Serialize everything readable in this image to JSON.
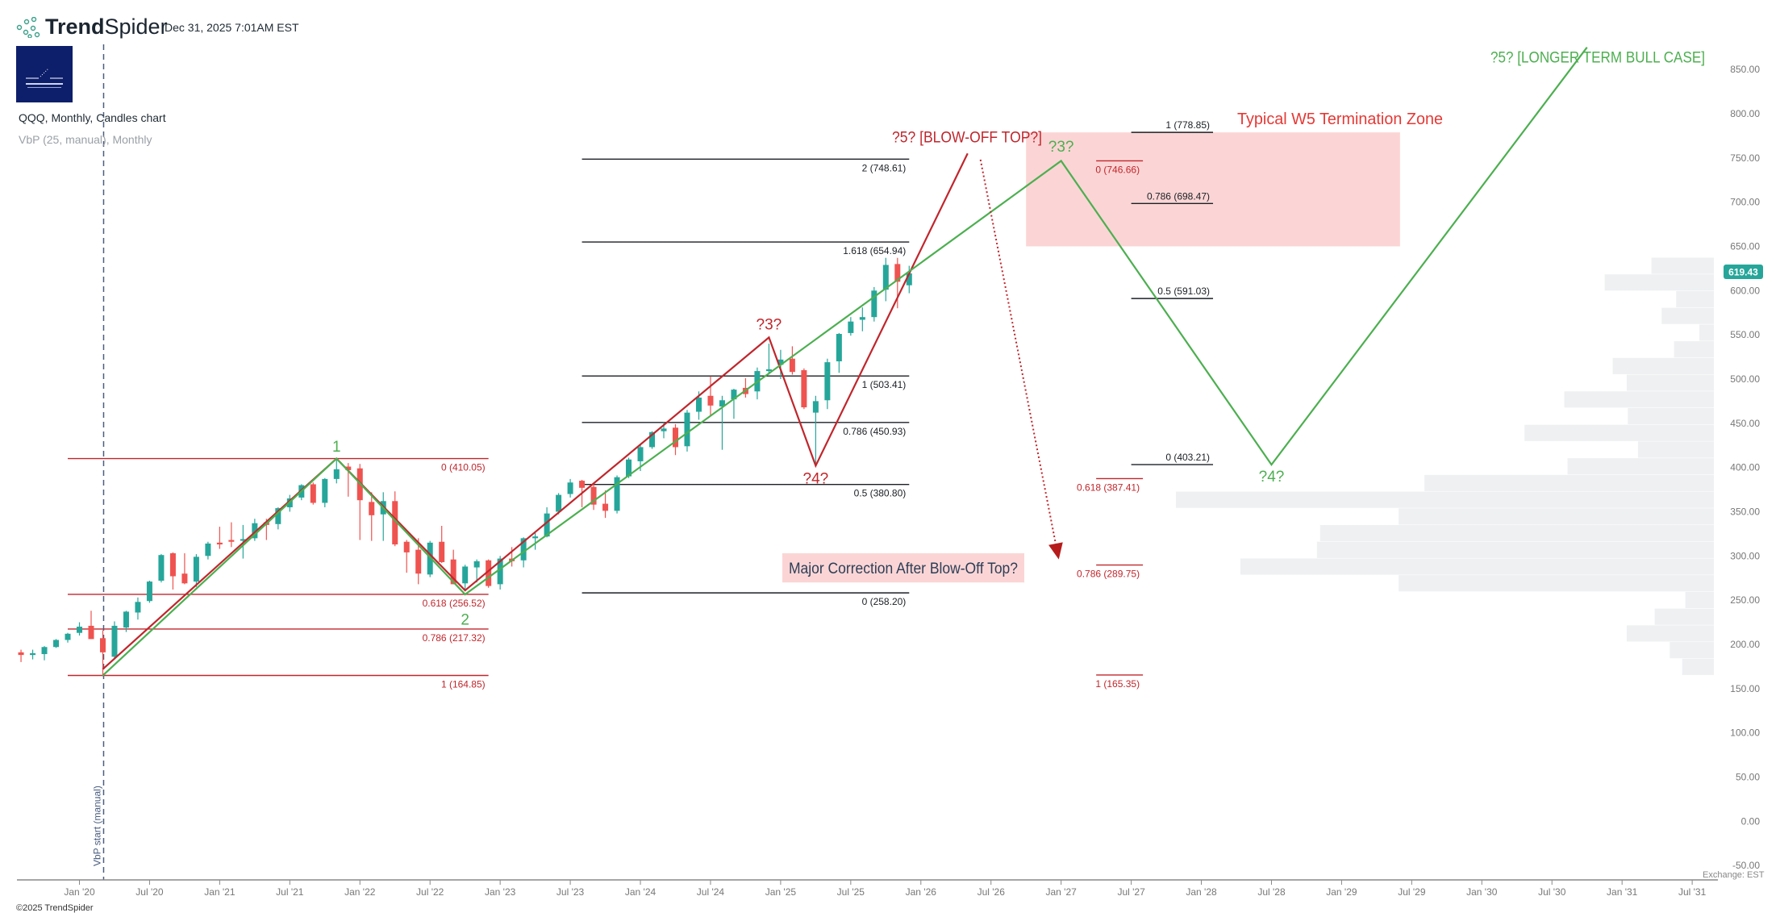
{
  "header": {
    "brand_bold": "Trend",
    "brand_light": "Spider",
    "timestamp": "Dec 31, 2025 7:01AM EST",
    "chart_title": "QQQ, Monthly, Candles chart",
    "indicator": "VbP (25, manual), Monthly"
  },
  "footer": {
    "copyright": "©2025 TrendSpider",
    "exchange": "Exchange: EST"
  },
  "vbp_marker_label": "VbP start (manual)",
  "colors": {
    "up": "#26a69a",
    "down": "#ef5350",
    "red_wave": "#c0262c",
    "green_wave": "#4caf50",
    "zone": "#fbd5d5",
    "badge": "#26a69a"
  },
  "chart_data": {
    "type": "candlestick",
    "symbol": "QQQ",
    "interval": "Monthly",
    "ylim": [
      -50,
      850
    ],
    "y_ticks": [
      "850.00",
      "800.00",
      "750.00",
      "700.00",
      "650.00",
      "600.00",
      "550.00",
      "500.00",
      "450.00",
      "400.00",
      "350.00",
      "300.00",
      "250.00",
      "200.00",
      "150.00",
      "100.00",
      "50.00",
      "0.00",
      "-50.00"
    ],
    "x_ticks": [
      "Jan '20",
      "Jul '20",
      "Jan '21",
      "Jul '21",
      "Jan '22",
      "Jul '22",
      "Jan '23",
      "Jul '23",
      "Jan '24",
      "Jul '24",
      "Jan '25",
      "Jul '25",
      "Jan '26",
      "Jul '26",
      "Jan '27",
      "Jul '27",
      "Jan '28",
      "Jul '28",
      "Jan '29",
      "Jul '29",
      "Jan '30",
      "Jul '30",
      "Jan '31",
      "Jul '31"
    ],
    "last_price": "619.43",
    "vbp_start": "2020-03",
    "candles": [
      [
        "2019-08",
        191,
        194,
        180,
        188
      ],
      [
        "2019-09",
        188,
        194,
        183,
        190
      ],
      [
        "2019-10",
        189,
        198,
        182,
        197
      ],
      [
        "2019-11",
        197,
        206,
        196,
        205
      ],
      [
        "2019-12",
        205,
        213,
        202,
        212
      ],
      [
        "2020-01",
        213,
        225,
        210,
        220
      ],
      [
        "2020-02",
        221,
        238,
        206,
        206
      ],
      [
        "2020-03",
        207,
        216,
        164,
        191
      ],
      [
        "2020-04",
        186,
        226,
        183,
        221
      ],
      [
        "2020-05",
        219,
        238,
        214,
        237
      ],
      [
        "2020-06",
        236,
        253,
        228,
        248
      ],
      [
        "2020-07",
        249,
        272,
        247,
        271
      ],
      [
        "2020-08",
        272,
        302,
        270,
        301
      ],
      [
        "2020-09",
        303,
        304,
        262,
        277
      ],
      [
        "2020-10",
        280,
        303,
        268,
        269
      ],
      [
        "2020-11",
        271,
        302,
        265,
        299
      ],
      [
        "2020-12",
        300,
        316,
        296,
        314
      ],
      [
        "2021-01",
        315,
        333,
        308,
        313
      ],
      [
        "2021-02",
        318,
        338,
        310,
        316
      ],
      [
        "2021-03",
        318,
        335,
        297,
        319
      ],
      [
        "2021-04",
        320,
        342,
        317,
        337
      ],
      [
        "2021-05",
        338,
        342,
        318,
        335
      ],
      [
        "2021-06",
        336,
        355,
        330,
        354
      ],
      [
        "2021-07",
        355,
        369,
        350,
        365
      ],
      [
        "2021-08",
        366,
        381,
        363,
        380
      ],
      [
        "2021-09",
        381,
        383,
        358,
        360
      ],
      [
        "2021-10",
        360,
        388,
        355,
        387
      ],
      [
        "2021-11",
        387,
        410,
        382,
        398
      ],
      [
        "2021-12",
        401,
        405,
        367,
        397
      ],
      [
        "2022-01",
        399,
        404,
        318,
        363
      ],
      [
        "2022-02",
        361,
        372,
        317,
        346
      ],
      [
        "2022-03",
        347,
        372,
        317,
        362
      ],
      [
        "2022-04",
        362,
        373,
        311,
        313
      ],
      [
        "2022-05",
        316,
        318,
        281,
        304
      ],
      [
        "2022-06",
        307,
        320,
        268,
        280
      ],
      [
        "2022-07",
        279,
        317,
        276,
        315
      ],
      [
        "2022-08",
        316,
        334,
        292,
        293
      ],
      [
        "2022-09",
        296,
        307,
        268,
        268
      ],
      [
        "2022-10",
        269,
        290,
        260,
        288
      ],
      [
        "2022-11",
        287,
        296,
        270,
        294
      ],
      [
        "2022-12",
        295,
        296,
        264,
        266
      ],
      [
        "2023-01",
        268,
        300,
        262,
        297
      ],
      [
        "2023-02",
        297,
        310,
        288,
        294
      ],
      [
        "2023-03",
        295,
        321,
        287,
        320
      ],
      [
        "2023-04",
        320,
        326,
        307,
        322
      ],
      [
        "2023-05",
        322,
        355,
        321,
        348
      ],
      [
        "2023-06",
        350,
        371,
        347,
        369
      ],
      [
        "2023-07",
        370,
        387,
        366,
        383
      ],
      [
        "2023-08",
        385,
        386,
        355,
        377
      ],
      [
        "2023-09",
        378,
        381,
        352,
        358
      ],
      [
        "2023-10",
        359,
        374,
        343,
        351
      ],
      [
        "2023-11",
        351,
        391,
        348,
        389
      ],
      [
        "2023-12",
        390,
        411,
        388,
        409
      ],
      [
        "2024-01",
        407,
        427,
        396,
        423
      ],
      [
        "2024-02",
        423,
        441,
        421,
        440
      ],
      [
        "2024-03",
        441,
        451,
        433,
        444
      ],
      [
        "2024-04",
        445,
        449,
        414,
        423
      ],
      [
        "2024-05",
        424,
        465,
        418,
        462
      ],
      [
        "2024-06",
        463,
        486,
        454,
        479
      ],
      [
        "2024-07",
        481,
        503,
        458,
        470
      ],
      [
        "2024-08",
        469,
        481,
        420,
        476
      ],
      [
        "2024-09",
        477,
        489,
        455,
        488
      ],
      [
        "2024-10",
        490,
        501,
        479,
        483
      ],
      [
        "2024-11",
        486,
        513,
        477,
        509
      ],
      [
        "2024-12",
        509,
        540,
        505,
        511
      ],
      [
        "2025-01",
        516,
        533,
        500,
        522
      ],
      [
        "2025-02",
        523,
        537,
        505,
        508
      ],
      [
        "2025-03",
        510,
        512,
        466,
        468
      ],
      [
        "2025-04",
        462,
        481,
        402,
        475
      ],
      [
        "2025-05",
        476,
        523,
        466,
        519
      ],
      [
        "2025-06",
        520,
        552,
        507,
        551
      ],
      [
        "2025-07",
        552,
        570,
        549,
        565
      ],
      [
        "2025-08",
        567,
        581,
        554,
        570
      ],
      [
        "2025-09",
        570,
        604,
        565,
        600
      ],
      [
        "2025-10",
        601,
        637,
        588,
        629
      ],
      [
        "2025-11",
        630,
        637,
        580,
        610
      ],
      [
        "2025-12",
        606,
        628,
        597,
        619.43
      ]
    ],
    "vbp": {
      "bins": 25,
      "price_range": [
        164.85,
        637.2
      ],
      "volumes_top_to_bottom": [
        0.116,
        0.203,
        0.07,
        0.097,
        0.027,
        0.074,
        0.188,
        0.162,
        0.278,
        0.16,
        0.352,
        0.141,
        0.272,
        0.538,
        1.0,
        0.586,
        0.732,
        0.738,
        0.88,
        0.586,
        0.053,
        0.11,
        0.162,
        0.082,
        0.059
      ]
    },
    "fib_sets": [
      {
        "color": "red",
        "from": "2019-12",
        "to": "2022-12",
        "label_pos": "below",
        "levels": [
          [
            "0",
            "410.05",
            410.05
          ],
          [
            "0.618",
            "256.52",
            256.52
          ],
          [
            "0.786",
            "217.32",
            217.32
          ],
          [
            "1",
            "164.85",
            164.85
          ]
        ]
      },
      {
        "color": "black",
        "from": "2023-08",
        "to": "2025-12",
        "label_pos": "below",
        "levels": [
          [
            "2",
            "748.61",
            748.61
          ],
          [
            "1.618",
            "654.94",
            654.94
          ],
          [
            "1",
            "503.41",
            503.41
          ],
          [
            "0.786",
            "450.93",
            450.93
          ],
          [
            "0.5",
            "380.80",
            380.8
          ],
          [
            "0",
            "258.20",
            258.2
          ]
        ]
      },
      {
        "color": "red",
        "from": "2027-04",
        "to": "2027-08",
        "label_pos": "below",
        "levels": [
          [
            "0",
            "746.66",
            746.66
          ],
          [
            "0.618",
            "387.41",
            387.41
          ],
          [
            "0.786",
            "289.75",
            289.75
          ],
          [
            "1",
            "165.35",
            165.35
          ]
        ]
      },
      {
        "color": "black",
        "from": "2027-07",
        "to": "2028-02",
        "label_pos": "above",
        "levels": [
          [
            "1",
            "778.85",
            778.85
          ],
          [
            "0.786",
            "698.47",
            698.47
          ],
          [
            "0.5",
            "591.03",
            591.03
          ],
          [
            "0",
            "403.21",
            403.21
          ]
        ]
      }
    ],
    "zone": {
      "label": "Typical W5 Termination Zone",
      "from": "2026-10",
      "to": "2029-06",
      "price_top": 778.85,
      "price_bottom": 650
    },
    "waves": {
      "green": [
        [
          "2020-03",
          164.85
        ],
        [
          "2021-11",
          410.05
        ],
        [
          "2022-10",
          256.5
        ],
        [
          "2027-01",
          746.66
        ],
        [
          "2028-07",
          403.21
        ],
        [
          "2030-10",
          875
        ]
      ],
      "red": [
        [
          "2020-03",
          172
        ],
        [
          "2021-11",
          410.05
        ],
        [
          "2022-10",
          261
        ],
        [
          "2024-12",
          547
        ],
        [
          "2025-04",
          402
        ],
        [
          "2026-05",
          755
        ]
      ]
    },
    "wave_labels": [
      {
        "text": "1",
        "color": "green",
        "d": "2021-11",
        "p": 418,
        "anchor": "middle"
      },
      {
        "text": "2",
        "color": "green",
        "d": "2022-10",
        "p": 235,
        "anchor": "middle"
      },
      {
        "text": "?3?",
        "color": "red",
        "d": "2024-12",
        "p": 556,
        "anchor": "middle"
      },
      {
        "text": "?4?",
        "color": "red",
        "d": "2025-04",
        "p": 382,
        "anchor": "middle"
      },
      {
        "text": "?5? [BLOW-OFF TOP?]",
        "color": "red",
        "d": "2025-02",
        "p": 764,
        "anchor": "start"
      },
      {
        "text": "?3?",
        "color": "green",
        "d": "2027-01",
        "p": 757,
        "anchor": "middle"
      },
      {
        "text": "?4?",
        "color": "green",
        "d": "2028-07",
        "p": 384,
        "anchor": "middle"
      },
      {
        "text": "?5? [LONGER TERM BULL CASE]",
        "color": "green",
        "d": "2030-11",
        "p": 858,
        "anchor": "end"
      }
    ],
    "arrow": {
      "from": [
        "2026-06.1",
        748
      ],
      "to": [
        "2026-12.8",
        296
      ]
    },
    "callout": {
      "text": "Major Correction After Blow-Off Top?",
      "d": "2024-07",
      "p_top": 303,
      "p_bottom": 270
    }
  }
}
